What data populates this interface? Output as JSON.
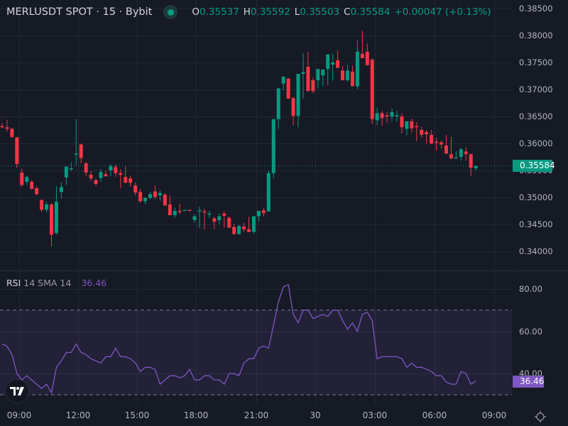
{
  "legend": {
    "symbol_title": "MERLUSDT SPOT · 15 · Bybit",
    "status": "market-open",
    "open_label": "O",
    "open": "0.35537",
    "high_label": "H",
    "high": "0.35592",
    "low_label": "L",
    "low": "0.35503",
    "close_label": "C",
    "close": "0.35584",
    "change": "+0.00047 (+0.13%)"
  },
  "price_axis": {
    "labels": [
      "0.38500",
      "0.38000",
      "0.37500",
      "0.37000",
      "0.36500",
      "0.36000",
      "0.35500",
      "0.35000",
      "0.34500",
      "0.34000"
    ],
    "last_price": "0.35584"
  },
  "rsi": {
    "name": "RSI",
    "params": "14 SMA 14",
    "value": "36.46",
    "axis_labels": [
      "80.00",
      "60.00",
      "40.00"
    ],
    "upper_band": 70,
    "lower_band": 30
  },
  "time_axis": {
    "labels": [
      "09:00",
      "12:00",
      "15:00",
      "18:00",
      "21:00",
      "30",
      "03:00",
      "06:00",
      "09:00"
    ]
  },
  "colors": {
    "background": "#161a25",
    "up": "#089981",
    "down": "#f23645",
    "rsi_line": "#7e57c2",
    "grid": "#232734"
  },
  "candles": [
    [
      0.3632,
      0.3638,
      0.3628,
      0.363
    ],
    [
      0.363,
      0.3644,
      0.3622,
      0.3627
    ],
    [
      0.3627,
      0.3629,
      0.361,
      0.3612
    ],
    [
      0.3611,
      0.3612,
      0.3555,
      0.3562
    ],
    [
      0.3546,
      0.3553,
      0.352,
      0.3523
    ],
    [
      0.3529,
      0.354,
      0.3523,
      0.3538
    ],
    [
      0.3529,
      0.3532,
      0.3514,
      0.3516
    ],
    [
      0.3517,
      0.3521,
      0.3504,
      0.3506
    ],
    [
      0.3495,
      0.3497,
      0.3473,
      0.3477
    ],
    [
      0.3477,
      0.3492,
      0.3472,
      0.3487
    ],
    [
      0.3487,
      0.3489,
      0.3409,
      0.3431
    ],
    [
      0.3434,
      0.3521,
      0.3431,
      0.3492
    ],
    [
      0.351,
      0.3528,
      0.3498,
      0.3519
    ],
    [
      0.3537,
      0.3547,
      0.3523,
      0.3557
    ],
    [
      0.3553,
      0.3565,
      0.3549,
      0.3554
    ],
    [
      0.3581,
      0.3645,
      0.356,
      0.3581
    ],
    [
      0.3598,
      0.36,
      0.3563,
      0.3573
    ],
    [
      0.3563,
      0.3566,
      0.3539,
      0.3546
    ],
    [
      0.3542,
      0.3549,
      0.353,
      0.3535
    ],
    [
      0.3532,
      0.3535,
      0.3521,
      0.3525
    ],
    [
      0.3536,
      0.3552,
      0.3529,
      0.3547
    ],
    [
      0.3543,
      0.355,
      0.354,
      0.3539
    ],
    [
      0.355,
      0.3562,
      0.3539,
      0.3558
    ],
    [
      0.3556,
      0.3561,
      0.3538,
      0.3545
    ],
    [
      0.3545,
      0.3552,
      0.3517,
      0.3542
    ],
    [
      0.3538,
      0.3557,
      0.3542,
      0.3527
    ],
    [
      0.3535,
      0.354,
      0.352,
      0.3527
    ],
    [
      0.3522,
      0.3528,
      0.3504,
      0.3509
    ],
    [
      0.351,
      0.3516,
      0.349,
      0.3493
    ],
    [
      0.3493,
      0.35,
      0.3487,
      0.3499
    ],
    [
      0.3499,
      0.3511,
      0.3496,
      0.3506
    ],
    [
      0.3511,
      0.3522,
      0.3497,
      0.3501
    ],
    [
      0.3504,
      0.3513,
      0.3494,
      0.3508
    ],
    [
      0.3505,
      0.3508,
      0.3491,
      0.3485
    ],
    [
      0.3487,
      0.3503,
      0.3489,
      0.3467
    ],
    [
      0.3467,
      0.3481,
      0.3462,
      0.3475
    ],
    [
      0.3475,
      0.3488,
      0.3469,
      0.3473
    ],
    [
      0.3477,
      0.3477,
      0.3475,
      0.3477
    ],
    [
      0.3477,
      0.347,
      0.3474,
      0.3476
    ],
    [
      0.3458,
      0.3469,
      0.3453,
      0.3465
    ],
    [
      0.3476,
      0.3483,
      0.3443,
      0.3476
    ],
    [
      0.3474,
      0.3479,
      0.344,
      0.3472
    ],
    [
      0.3468,
      0.3475,
      0.3462,
      0.347
    ],
    [
      0.3461,
      0.3464,
      0.3441,
      0.3455
    ],
    [
      0.3458,
      0.3471,
      0.345,
      0.3465
    ],
    [
      0.347,
      0.3474,
      0.3444,
      0.3466
    ],
    [
      0.3462,
      0.3465,
      0.3451,
      0.3444
    ],
    [
      0.3445,
      0.3451,
      0.3431,
      0.3432
    ],
    [
      0.3432,
      0.3449,
      0.3431,
      0.3447
    ],
    [
      0.3446,
      0.3453,
      0.3436,
      0.3441
    ],
    [
      0.3441,
      0.3464,
      0.3439,
      0.3436
    ],
    [
      0.3436,
      0.3464,
      0.3432,
      0.3465
    ],
    [
      0.3465,
      0.3474,
      0.3455,
      0.3475
    ],
    [
      0.3476,
      0.3481,
      0.3465,
      0.3471
    ],
    [
      0.3474,
      0.355,
      0.3474,
      0.3545
    ],
    [
      0.3545,
      0.364,
      0.3536,
      0.3645
    ],
    [
      0.3645,
      0.3701,
      0.3627,
      0.3702
    ],
    [
      0.3711,
      0.372,
      0.3698,
      0.3724
    ],
    [
      0.372,
      0.3722,
      0.3683,
      0.3683
    ],
    [
      0.3684,
      0.3686,
      0.3634,
      0.3651
    ],
    [
      0.3651,
      0.3688,
      0.363,
      0.3729
    ],
    [
      0.3729,
      0.3767,
      0.3683,
      0.3732
    ],
    [
      0.3742,
      0.377,
      0.37,
      0.3697
    ],
    [
      0.3717,
      0.3722,
      0.3693,
      0.3697
    ],
    [
      0.3717,
      0.3733,
      0.3702,
      0.3738
    ],
    [
      0.3726,
      0.3724,
      0.3706,
      0.3737
    ],
    [
      0.3738,
      0.3756,
      0.3708,
      0.3765
    ],
    [
      0.3746,
      0.3766,
      0.3716,
      0.375
    ],
    [
      0.3754,
      0.3772,
      0.374,
      0.374
    ],
    [
      0.3735,
      0.3743,
      0.3717,
      0.3717
    ],
    [
      0.3717,
      0.3746,
      0.3715,
      0.3735
    ],
    [
      0.3733,
      0.3744,
      0.371,
      0.3706
    ],
    [
      0.3706,
      0.3791,
      0.3701,
      0.377
    ],
    [
      0.3766,
      0.3809,
      0.3762,
      0.3758
    ],
    [
      0.377,
      0.3785,
      0.3748,
      0.3745
    ],
    [
      0.3755,
      0.3758,
      0.3636,
      0.3645
    ],
    [
      0.3643,
      0.3666,
      0.3634,
      0.3656
    ],
    [
      0.3656,
      0.366,
      0.3633,
      0.3647
    ],
    [
      0.3652,
      0.3658,
      0.3638,
      0.3651
    ],
    [
      0.365,
      0.3665,
      0.3641,
      0.3658
    ],
    [
      0.3652,
      0.366,
      0.364,
      0.3652
    ],
    [
      0.365,
      0.3656,
      0.3618,
      0.363
    ],
    [
      0.3627,
      0.3637,
      0.3615,
      0.3641
    ],
    [
      0.3641,
      0.3646,
      0.362,
      0.3628
    ],
    [
      0.3632,
      0.3639,
      0.3604,
      0.363
    ],
    [
      0.3625,
      0.3631,
      0.3611,
      0.3616
    ],
    [
      0.3621,
      0.3625,
      0.36,
      0.3617
    ],
    [
      0.3616,
      0.3625,
      0.3598,
      0.36
    ],
    [
      0.3603,
      0.361,
      0.3587,
      0.3601
    ],
    [
      0.3602,
      0.3605,
      0.3591,
      0.3598
    ],
    [
      0.3596,
      0.3616,
      0.3582,
      0.3581
    ],
    [
      0.358,
      0.3612,
      0.3574,
      0.3572
    ],
    [
      0.3574,
      0.3586,
      0.3577,
      0.3574
    ],
    [
      0.3575,
      0.3592,
      0.3568,
      0.3589
    ],
    [
      0.3585,
      0.3593,
      0.3568,
      0.358
    ],
    [
      0.358,
      0.3581,
      0.354,
      0.3555
    ],
    [
      0.3554,
      0.3559,
      0.355,
      0.3558
    ]
  ],
  "rsi_series": [
    54,
    53,
    49,
    40,
    37,
    39,
    37,
    35,
    33,
    35,
    31,
    43,
    46,
    50,
    50,
    54,
    50,
    49,
    47,
    46,
    45,
    48,
    48,
    52,
    48,
    48,
    47,
    45,
    41,
    43,
    43,
    42,
    35,
    37,
    39,
    39,
    38,
    39,
    42,
    37,
    37,
    39,
    39,
    37,
    37,
    35,
    40,
    40,
    39,
    45,
    47,
    47,
    52,
    53,
    52,
    63,
    74,
    81,
    82,
    68,
    64,
    70,
    70,
    66,
    67,
    68,
    67,
    70,
    70,
    65,
    61,
    64,
    60,
    68,
    69,
    65,
    47,
    48,
    48,
    48,
    48,
    47,
    43,
    45,
    43,
    43,
    42,
    41,
    39,
    39,
    36,
    35,
    35,
    41,
    40,
    35,
    36.46
  ]
}
